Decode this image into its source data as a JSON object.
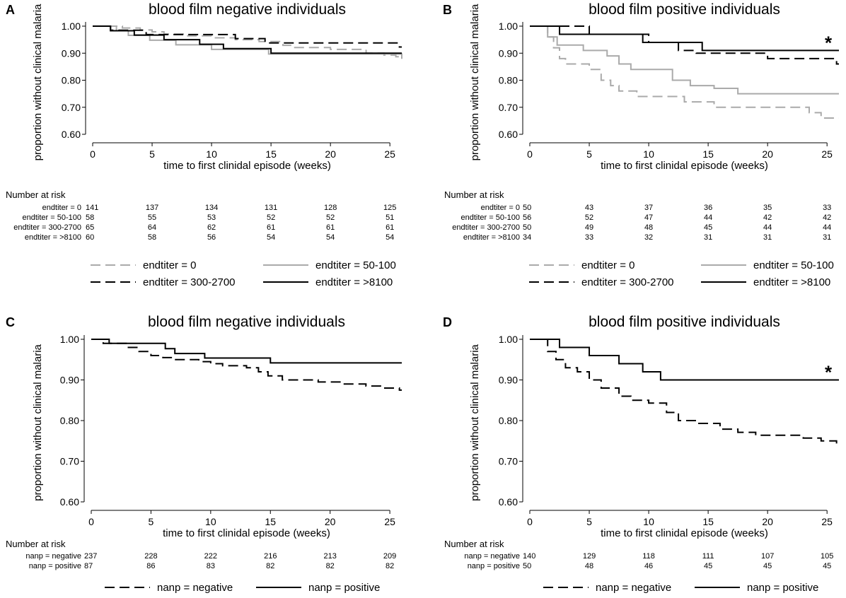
{
  "chart_data": [
    {
      "type": "line",
      "panel": "A",
      "title": "blood film negative individuals",
      "xlabel": "time to first clinidal episode (weeks)",
      "ylabel": "proportion without clinical malaria",
      "xlim": [
        0,
        26
      ],
      "ylim": [
        0.6,
        1.0
      ],
      "xticks": [
        0,
        5,
        10,
        15,
        20,
        25
      ],
      "yticks": [
        0.6,
        0.7,
        0.8,
        0.9,
        1.0
      ],
      "ytick_labels": [
        "0.60",
        "0.70",
        "0.80",
        "0.90",
        "1.00"
      ],
      "series": [
        {
          "name": "endtiter = 0",
          "style": "gray-dash",
          "steps": [
            [
              0,
              1.0
            ],
            [
              2.5,
              0.993
            ],
            [
              4,
              0.986
            ],
            [
              5,
              0.979
            ],
            [
              6,
              0.971
            ],
            [
              8,
              0.964
            ],
            [
              10,
              0.957
            ],
            [
              12,
              0.95
            ],
            [
              14,
              0.943
            ],
            [
              16,
              0.929
            ],
            [
              17,
              0.921
            ],
            [
              20,
              0.914
            ],
            [
              23,
              0.9
            ],
            [
              24.5,
              0.893
            ],
            [
              25.5,
              0.887
            ],
            [
              26,
              0.887
            ]
          ]
        },
        {
          "name": "endtiter = 50-100",
          "style": "gray-solid",
          "steps": [
            [
              0,
              1.0
            ],
            [
              2,
              0.983
            ],
            [
              3,
              0.966
            ],
            [
              4.8,
              0.948
            ],
            [
              7,
              0.931
            ],
            [
              10,
              0.914
            ],
            [
              14.8,
              0.897
            ],
            [
              26,
              0.879
            ]
          ]
        },
        {
          "name": "endtiter = 300-2700",
          "style": "black-dash",
          "steps": [
            [
              0,
              1.0
            ],
            [
              1.5,
              0.985
            ],
            [
              4.5,
              0.969
            ],
            [
              12,
              0.954
            ],
            [
              14.5,
              0.938
            ],
            [
              25.8,
              0.923
            ],
            [
              26,
              0.923
            ]
          ]
        },
        {
          "name": "endtiter = >8100",
          "style": "black-solid",
          "steps": [
            [
              0,
              1.0
            ],
            [
              1.5,
              0.983
            ],
            [
              3.5,
              0.967
            ],
            [
              6,
              0.95
            ],
            [
              9,
              0.933
            ],
            [
              11,
              0.917
            ],
            [
              15,
              0.9
            ],
            [
              26,
              0.9
            ]
          ]
        }
      ],
      "risk_table": {
        "header": "Number at risk",
        "times": [
          0,
          5,
          10,
          15,
          20,
          25
        ],
        "rows": [
          {
            "label": "endtiter = 0",
            "values": [
              "141",
              "137",
              "134",
              "131",
              "128",
              "125"
            ]
          },
          {
            "label": "endtiter = 50-100",
            "values": [
              "58",
              "55",
              "53",
              "52",
              "52",
              "51"
            ]
          },
          {
            "label": "endtiter = 300-2700",
            "values": [
              "65",
              "64",
              "62",
              "61",
              "61",
              "61"
            ]
          },
          {
            "label": "endtiter = >8100",
            "values": [
              "60",
              "58",
              "56",
              "54",
              "54",
              "54"
            ]
          }
        ]
      },
      "legend": [
        "endtiter = 0",
        "endtiter = 50-100",
        "endtiter = 300-2700",
        "endtiter = >8100"
      ],
      "annotation": ""
    },
    {
      "type": "line",
      "panel": "B",
      "title": "blood film positive individuals",
      "xlabel": "time to first clinidal episode (weeks)",
      "ylabel": "proportion without clinical malaria",
      "xlim": [
        0,
        26
      ],
      "ylim": [
        0.6,
        1.0
      ],
      "xticks": [
        0,
        5,
        10,
        15,
        20,
        25
      ],
      "yticks": [
        0.6,
        0.7,
        0.8,
        0.9,
        1.0
      ],
      "ytick_labels": [
        "0.60",
        "0.70",
        "0.80",
        "0.90",
        "1.00"
      ],
      "series": [
        {
          "name": "endtiter = 0",
          "style": "gray-dash",
          "steps": [
            [
              0,
              1.0
            ],
            [
              1.5,
              0.96
            ],
            [
              2,
              0.92
            ],
            [
              2.5,
              0.88
            ],
            [
              3,
              0.86
            ],
            [
              5,
              0.84
            ],
            [
              6,
              0.8
            ],
            [
              6.8,
              0.78
            ],
            [
              7.5,
              0.76
            ],
            [
              9,
              0.74
            ],
            [
              13,
              0.72
            ],
            [
              15.5,
              0.7
            ],
            [
              23.5,
              0.68
            ],
            [
              24.5,
              0.66
            ],
            [
              26,
              0.66
            ]
          ]
        },
        {
          "name": "endtiter = 50-100",
          "style": "gray-solid",
          "steps": [
            [
              0,
              1.0
            ],
            [
              1.5,
              0.96
            ],
            [
              2.3,
              0.93
            ],
            [
              4.5,
              0.91
            ],
            [
              6.5,
              0.89
            ],
            [
              7.5,
              0.86
            ],
            [
              8.5,
              0.84
            ],
            [
              12,
              0.8
            ],
            [
              13.5,
              0.78
            ],
            [
              15.5,
              0.77
            ],
            [
              17.5,
              0.75
            ],
            [
              26,
              0.75
            ]
          ]
        },
        {
          "name": "endtiter = 300-2700",
          "style": "black-dash",
          "steps": [
            [
              0,
              1.0
            ],
            [
              5,
              0.97
            ],
            [
              10,
              0.94
            ],
            [
              12.5,
              0.91
            ],
            [
              14,
              0.9
            ],
            [
              20,
              0.88
            ],
            [
              25.8,
              0.86
            ],
            [
              26,
              0.86
            ]
          ]
        },
        {
          "name": "endtiter = >8100",
          "style": "black-solid",
          "steps": [
            [
              0,
              1.0
            ],
            [
              2.5,
              0.97
            ],
            [
              9.5,
              0.94
            ],
            [
              12.5,
              0.94
            ],
            [
              14.5,
              0.91
            ],
            [
              26,
              0.91
            ]
          ]
        }
      ],
      "risk_table": {
        "header": "Number at risk",
        "times": [
          0,
          5,
          10,
          15,
          20,
          25
        ],
        "rows": [
          {
            "label": "endtiter = 0",
            "values": [
              "50",
              "43",
              "37",
              "36",
              "35",
              "33"
            ]
          },
          {
            "label": "endtiter = 50-100",
            "values": [
              "56",
              "52",
              "47",
              "44",
              "42",
              "42"
            ]
          },
          {
            "label": "endtiter = 300-2700",
            "values": [
              "50",
              "49",
              "48",
              "45",
              "44",
              "44"
            ]
          },
          {
            "label": "endtiter = >8100",
            "values": [
              "34",
              "33",
              "32",
              "31",
              "31",
              "31"
            ]
          }
        ]
      },
      "legend": [
        "endtiter = 0",
        "endtiter = 50-100",
        "endtiter = 300-2700",
        "endtiter = >8100"
      ],
      "annotation": "*"
    },
    {
      "type": "line",
      "panel": "C",
      "title": "blood film negative individuals",
      "xlabel": "time to first clinidal episode (weeks)",
      "ylabel": "proportion without clinical malaria",
      "xlim": [
        0,
        26
      ],
      "ylim": [
        0.6,
        1.0
      ],
      "xticks": [
        0,
        5,
        10,
        15,
        20,
        25
      ],
      "yticks": [
        0.6,
        0.7,
        0.8,
        0.9,
        1.0
      ],
      "ytick_labels": [
        "0.60",
        "0.70",
        "0.80",
        "0.90",
        "1.00"
      ],
      "series": [
        {
          "name": "nanp = negative",
          "style": "black-dash",
          "steps": [
            [
              0,
              1.0
            ],
            [
              1,
              0.99
            ],
            [
              3,
              0.98
            ],
            [
              4,
              0.97
            ],
            [
              5,
              0.96
            ],
            [
              6,
              0.955
            ],
            [
              7,
              0.95
            ],
            [
              9,
              0.945
            ],
            [
              10,
              0.94
            ],
            [
              11,
              0.935
            ],
            [
              13,
              0.93
            ],
            [
              14,
              0.92
            ],
            [
              14.8,
              0.91
            ],
            [
              16,
              0.9
            ],
            [
              19,
              0.895
            ],
            [
              21,
              0.89
            ],
            [
              23,
              0.885
            ],
            [
              24.5,
              0.88
            ],
            [
              25.8,
              0.875
            ],
            [
              26,
              0.875
            ]
          ]
        },
        {
          "name": "nanp = positive",
          "style": "black-solid",
          "steps": [
            [
              0,
              1.0
            ],
            [
              1.5,
              0.99
            ],
            [
              6.2,
              0.977
            ],
            [
              7,
              0.965
            ],
            [
              9.5,
              0.954
            ],
            [
              15,
              0.942
            ],
            [
              26,
              0.942
            ]
          ]
        }
      ],
      "risk_table": {
        "header": "Number at risk",
        "times": [
          0,
          5,
          10,
          15,
          20,
          25
        ],
        "rows": [
          {
            "label": "nanp = negative",
            "values": [
              "237",
              "228",
              "222",
              "216",
              "213",
              "209"
            ]
          },
          {
            "label": "nanp = positive",
            "values": [
              "87",
              "86",
              "83",
              "82",
              "82",
              "82"
            ]
          }
        ]
      },
      "legend": [
        "nanp = negative",
        "nanp = positive"
      ],
      "annotation": ""
    },
    {
      "type": "line",
      "panel": "D",
      "title": "blood film positive individuals",
      "xlabel": "time to first clinidal episode (weeks)",
      "ylabel": "proportion without clinical malaria",
      "xlim": [
        0,
        26
      ],
      "ylim": [
        0.6,
        1.0
      ],
      "xticks": [
        0,
        5,
        10,
        15,
        20,
        25
      ],
      "yticks": [
        0.6,
        0.7,
        0.8,
        0.9,
        1.0
      ],
      "ytick_labels": [
        "0.60",
        "0.70",
        "0.80",
        "0.90",
        "1.00"
      ],
      "series": [
        {
          "name": "nanp = negative",
          "style": "black-dash",
          "steps": [
            [
              0,
              1.0
            ],
            [
              1.5,
              0.97
            ],
            [
              2.2,
              0.95
            ],
            [
              3,
              0.93
            ],
            [
              4,
              0.92
            ],
            [
              5,
              0.9
            ],
            [
              6,
              0.88
            ],
            [
              7.5,
              0.86
            ],
            [
              8.5,
              0.85
            ],
            [
              10,
              0.843
            ],
            [
              11.5,
              0.82
            ],
            [
              12.5,
              0.8
            ],
            [
              14,
              0.793
            ],
            [
              16,
              0.779
            ],
            [
              17.5,
              0.771
            ],
            [
              19,
              0.764
            ],
            [
              23,
              0.757
            ],
            [
              24.5,
              0.75
            ],
            [
              25.8,
              0.743
            ],
            [
              26,
              0.743
            ]
          ]
        },
        {
          "name": "nanp = positive",
          "style": "black-solid",
          "steps": [
            [
              0,
              1.0
            ],
            [
              2.5,
              0.98
            ],
            [
              5,
              0.96
            ],
            [
              7.5,
              0.94
            ],
            [
              9.5,
              0.92
            ],
            [
              11,
              0.9
            ],
            [
              26,
              0.9
            ]
          ]
        }
      ],
      "risk_table": {
        "header": "Number at risk",
        "times": [
          0,
          5,
          10,
          15,
          20,
          25
        ],
        "rows": [
          {
            "label": "nanp = negative",
            "values": [
              "140",
              "129",
              "118",
              "111",
              "107",
              "105"
            ]
          },
          {
            "label": "nanp = positive",
            "values": [
              "50",
              "48",
              "46",
              "45",
              "45",
              "45"
            ]
          }
        ]
      },
      "legend": [
        "nanp = negative",
        "nanp = positive"
      ],
      "annotation": "*"
    }
  ],
  "styles": {
    "gray-dash": {
      "color": "#aaaaaa",
      "dash": "14,7"
    },
    "gray-solid": {
      "color": "#aaaaaa",
      "dash": ""
    },
    "black-dash": {
      "color": "#000000",
      "dash": "14,7"
    },
    "black-solid": {
      "color": "#000000",
      "dash": ""
    }
  }
}
